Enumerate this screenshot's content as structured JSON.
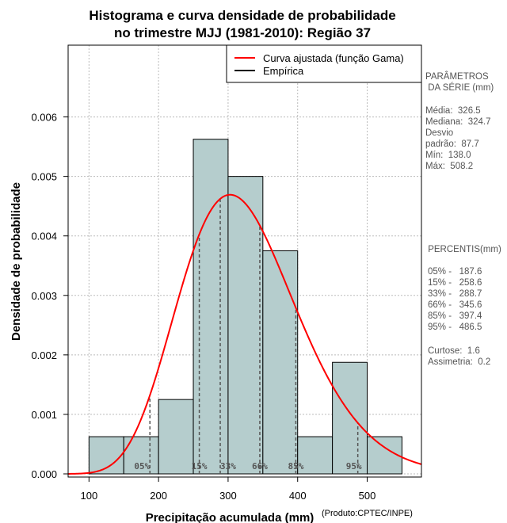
{
  "chart_data": {
    "type": "bar",
    "title_line1": "Histograma e curva densidade de probabilidade",
    "title_line2": "no trimestre MJJ (1981-2010): Região 37",
    "xlabel": "Precipitação acumulada (mm)",
    "ylabel": "Densidade de probabilidade",
    "credit": "(Produto:CPTEC/INPE)",
    "xlim": [
      70,
      578
    ],
    "ylim": [
      0,
      0.0069
    ],
    "x_ticks": [
      100,
      200,
      300,
      400,
      500
    ],
    "x_tick_labels": [
      "100",
      "200",
      "300",
      "400",
      "500"
    ],
    "y_ticks": [
      0,
      0.001,
      0.002,
      0.003,
      0.004,
      0.005,
      0.006
    ],
    "y_tick_labels": [
      "0.000",
      "0.001",
      "0.002",
      "0.003",
      "0.004",
      "0.005",
      "0.006"
    ],
    "grid": true,
    "bins": [
      {
        "start": 100,
        "end": 150,
        "density": 0.000625
      },
      {
        "start": 150,
        "end": 200,
        "density": 0.000625
      },
      {
        "start": 200,
        "end": 250,
        "density": 0.00125
      },
      {
        "start": 250,
        "end": 300,
        "density": 0.005625
      },
      {
        "start": 300,
        "end": 350,
        "density": 0.005
      },
      {
        "start": 350,
        "end": 400,
        "density": 0.00375
      },
      {
        "start": 400,
        "end": 450,
        "density": 0.000625
      },
      {
        "start": 450,
        "end": 500,
        "density": 0.001875
      },
      {
        "start": 500,
        "end": 550,
        "density": 0.000625
      }
    ],
    "gamma_fit": {
      "mean": 326.5,
      "sd": 87.7
    },
    "legend": {
      "position": "top-right",
      "entries": [
        {
          "label": "Curva ajustada (função Gama)",
          "color": "#ff0000"
        },
        {
          "label": "Empírica",
          "color": "#000000"
        }
      ]
    },
    "percentile_markers": [
      {
        "label": "05%",
        "value": 187.6
      },
      {
        "label": "15%",
        "value": 258.6
      },
      {
        "label": "33%",
        "value": 288.7
      },
      {
        "label": "66%",
        "value": 345.6
      },
      {
        "label": "85%",
        "value": 397.4
      },
      {
        "label": "95%",
        "value": 486.5
      }
    ],
    "parameters_title": [
      "PARÂMETROS",
      " DA SÉRIE (mm)"
    ],
    "parameters": [
      "Média:  326.5",
      "Mediana:  324.7",
      "Desvio",
      "padrão:  87.7",
      "Mín:  138.0",
      "Máx:  508.2"
    ],
    "percentiles_title": " PERCENTIS(mm)",
    "percentiles": [
      "05% -   187.6",
      "15% -   258.6",
      "33% -   288.7",
      "66% -   345.6",
      "85% -   397.4",
      "95% -   486.5"
    ],
    "stats": [
      "Curtose:  1.6",
      "Assimetria:  0.2"
    ]
  },
  "colors": {
    "bar_fill": "#b5cdcd",
    "bar_stroke": "#000000",
    "curve": "#ff0000",
    "grid": "#bbbbbb",
    "percentile_line": "#555555",
    "side_text": "#555555"
  }
}
